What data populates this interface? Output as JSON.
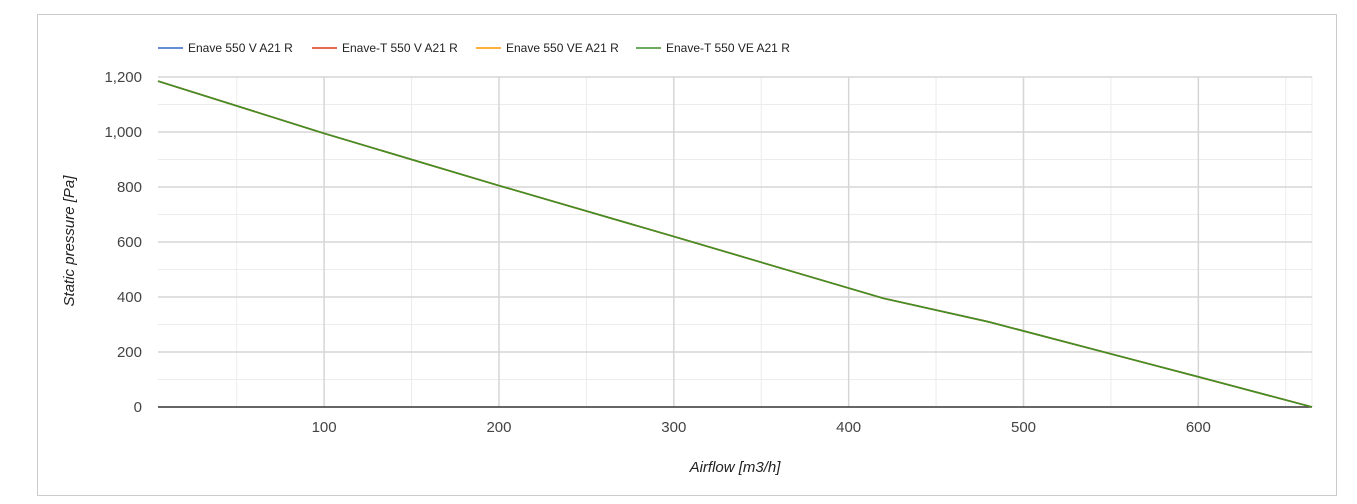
{
  "chart_data": {
    "type": "line",
    "title": "",
    "xlabel": "Airflow [m3/h]",
    "ylabel": "Static pressure [Pa]",
    "xlim": [
      5,
      665
    ],
    "ylim": [
      0,
      1200
    ],
    "x_ticks": [
      100,
      200,
      300,
      400,
      500,
      600
    ],
    "x_tick_labels": [
      "100",
      "200",
      "300",
      "400",
      "500",
      "600"
    ],
    "y_ticks": [
      0,
      200,
      400,
      600,
      800,
      1000,
      1200
    ],
    "y_tick_labels": [
      "0",
      "200",
      "400",
      "600",
      "800",
      "1,000",
      "1,200"
    ],
    "grid": true,
    "legend_position": "top-left",
    "series": [
      {
        "name": "Enave 550 V A21 R",
        "color": "#3366cc",
        "x": [
          5,
          100,
          200,
          300,
          420,
          480,
          600,
          665
        ],
        "y": [
          1185,
          995,
          805,
          620,
          395,
          310,
          110,
          0
        ]
      },
      {
        "name": "Enave-T 550 V A21 R",
        "color": "#dc3912",
        "x": [
          5,
          100,
          200,
          300,
          420,
          480,
          600,
          665
        ],
        "y": [
          1185,
          995,
          805,
          620,
          395,
          310,
          110,
          0
        ]
      },
      {
        "name": "Enave 550 VE A21 R",
        "color": "#ff9900",
        "x": [
          5,
          100,
          200,
          300,
          420,
          480,
          600,
          665
        ],
        "y": [
          1185,
          995,
          805,
          620,
          395,
          310,
          110,
          0
        ]
      },
      {
        "name": "Enave-T 550 VE A21 R",
        "color": "#3f8f29",
        "x": [
          5,
          100,
          200,
          300,
          420,
          480,
          600,
          665
        ],
        "y": [
          1185,
          995,
          805,
          620,
          395,
          310,
          110,
          0
        ]
      }
    ]
  }
}
